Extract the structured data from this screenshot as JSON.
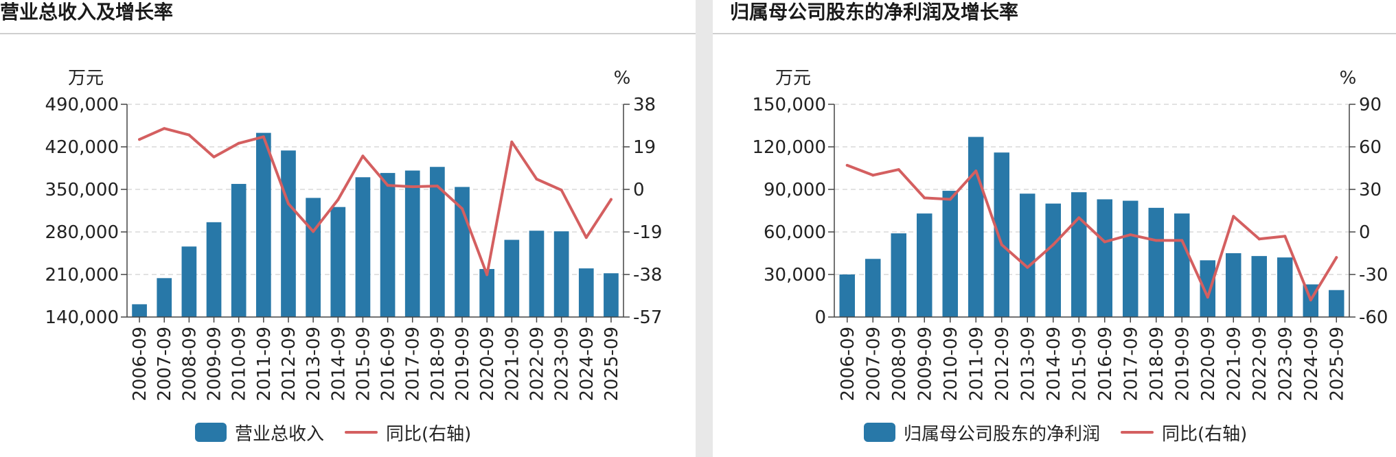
{
  "colors": {
    "bar": "#2878a8",
    "line": "#d45f60",
    "grid": "#d9d9d9",
    "axis": "#444444",
    "text": "#222222"
  },
  "charts": [
    {
      "panel_title": "营业总收入及增长率",
      "left_unit": "万元",
      "right_unit": "%",
      "legend_bar": "营业总收入",
      "legend_line": "同比(右轴)"
    },
    {
      "panel_title": "归属母公司股东的净利润及增长率",
      "left_unit": "万元",
      "right_unit": "%",
      "legend_bar": "归属母公司股东的净利润",
      "legend_line": "同比(右轴)"
    }
  ],
  "chart_data": [
    {
      "type": "bar",
      "title": "营业总收入及增长率",
      "categories": [
        "2006-09",
        "2007-09",
        "2008-09",
        "2009-09",
        "2010-09",
        "2011-09",
        "2012-09",
        "2013-09",
        "2014-09",
        "2015-09",
        "2016-09",
        "2017-09",
        "2018-09",
        "2019-09",
        "2020-09",
        "2021-09",
        "2022-09",
        "2023-09",
        "2024-09",
        "2025-09"
      ],
      "series": [
        {
          "name": "营业总收入",
          "type": "bar",
          "axis": "left",
          "values": [
            161000,
            204000,
            256000,
            296000,
            359000,
            443000,
            414000,
            336000,
            321000,
            370000,
            377000,
            381000,
            387000,
            354000,
            219000,
            267000,
            282000,
            281000,
            220000,
            212000
          ]
        },
        {
          "name": "同比(右轴)",
          "type": "line",
          "axis": "right",
          "values": [
            22.3,
            27.2,
            24.3,
            14.5,
            20.6,
            23.5,
            -6.4,
            -18.8,
            -4.6,
            14.9,
            1.8,
            1.2,
            1.5,
            -8.6,
            -38.1,
            21.2,
            4.6,
            -0.3,
            -21.5,
            -4.5
          ]
        }
      ],
      "ylabel_left": "万元",
      "ylabel_right": "%",
      "ylim_left": [
        140000,
        490000
      ],
      "ylim_right": [
        -57,
        38
      ],
      "yticks_left": [
        "490,000",
        "420,000",
        "350,000",
        "280,000",
        "210,000",
        "140,000"
      ],
      "yticks_right": [
        "38",
        "19",
        "0",
        "-19",
        "-38",
        "-57"
      ],
      "grid": true,
      "legend": "bottom"
    },
    {
      "type": "bar",
      "title": "归属母公司股东的净利润及增长率",
      "categories": [
        "2006-09",
        "2007-09",
        "2008-09",
        "2009-09",
        "2010-09",
        "2011-09",
        "2012-09",
        "2013-09",
        "2014-09",
        "2015-09",
        "2016-09",
        "2017-09",
        "2018-09",
        "2019-09",
        "2020-09",
        "2021-09",
        "2022-09",
        "2023-09",
        "2024-09",
        "2025-09"
      ],
      "series": [
        {
          "name": "归属母公司股东的净利润",
          "type": "bar",
          "axis": "left",
          "values": [
            30000,
            41000,
            59000,
            73000,
            89000,
            127000,
            116000,
            87000,
            80000,
            88000,
            83000,
            82000,
            77000,
            73000,
            40000,
            45000,
            43000,
            42000,
            23000,
            19000
          ]
        },
        {
          "name": "同比(右轴)",
          "type": "line",
          "axis": "right",
          "values": [
            47,
            40,
            44,
            24,
            23,
            43,
            -9,
            -25,
            -9,
            10,
            -7,
            -2,
            -6,
            -6,
            -46,
            11,
            -5,
            -3,
            -48,
            -18
          ]
        }
      ],
      "ylabel_left": "万元",
      "ylabel_right": "%",
      "ylim_left": [
        0,
        150000
      ],
      "ylim_right": [
        -60,
        90
      ],
      "yticks_left": [
        "150,000",
        "120,000",
        "90,000",
        "60,000",
        "30,000",
        "0"
      ],
      "yticks_right": [
        "90",
        "60",
        "30",
        "0",
        "-30",
        "-60"
      ],
      "grid": true,
      "legend": "bottom"
    }
  ]
}
